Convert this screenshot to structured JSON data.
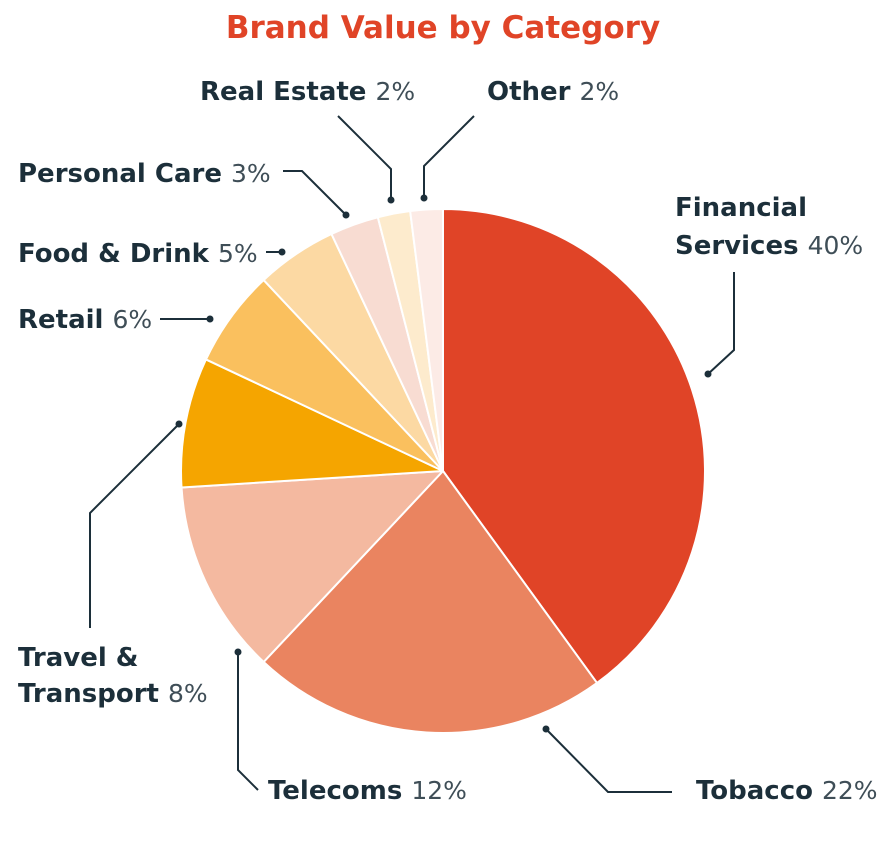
{
  "chart_data": {
    "type": "pie",
    "title": "Brand Value by Category",
    "start_angle_deg": 0,
    "direction": "clockwise",
    "slices": [
      {
        "key": "financial-services",
        "name_lines": [
          "Financial",
          "Services"
        ],
        "value": 40,
        "pct_label": "40%",
        "color": "#e04427"
      },
      {
        "key": "tobacco",
        "name_lines": [
          "Tobacco"
        ],
        "value": 22,
        "pct_label": "22%",
        "color": "#ea8460"
      },
      {
        "key": "telecoms",
        "name_lines": [
          "Telecoms"
        ],
        "value": 12,
        "pct_label": "12%",
        "color": "#f4b9a0"
      },
      {
        "key": "travel-transport",
        "name_lines": [
          "Travel &",
          "Transport"
        ],
        "value": 8,
        "pct_label": "8%",
        "color": "#f5a500"
      },
      {
        "key": "retail",
        "name_lines": [
          "Retail"
        ],
        "value": 6,
        "pct_label": "6%",
        "color": "#fac05e"
      },
      {
        "key": "food-drink",
        "name_lines": [
          "Food & Drink"
        ],
        "value": 5,
        "pct_label": "5%",
        "color": "#fcd9a3"
      },
      {
        "key": "personal-care",
        "name_lines": [
          "Personal Care"
        ],
        "value": 3,
        "pct_label": "3%",
        "color": "#f8dcd2"
      },
      {
        "key": "real-estate",
        "name_lines": [
          "Real Estate"
        ],
        "value": 2,
        "pct_label": "2%",
        "color": "#fdebcd"
      },
      {
        "key": "other",
        "name_lines": [
          "Other"
        ],
        "value": 2,
        "pct_label": "2%",
        "color": "#fcebe6"
      }
    ]
  }
}
